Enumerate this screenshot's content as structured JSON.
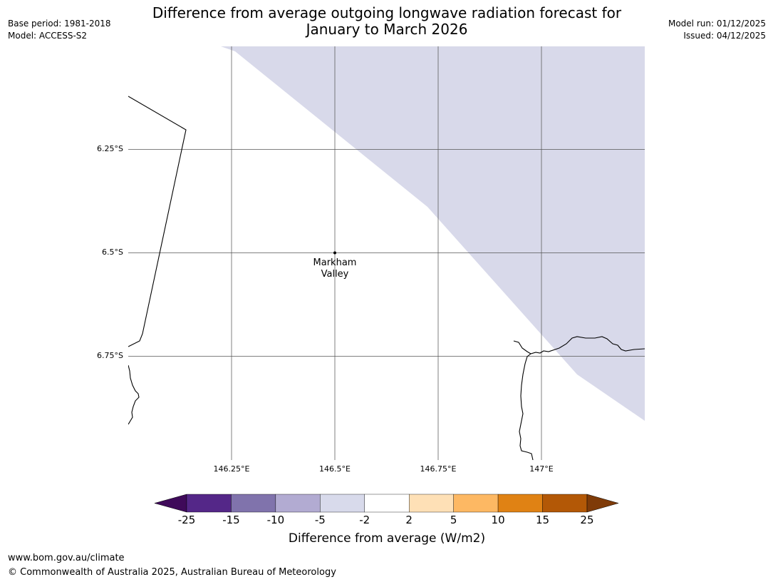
{
  "header": {
    "base_period": "Base period: 1981-2018",
    "model": "Model: ACCESS-S2",
    "title_line1": "Difference from average outgoing longwave radiation forecast for",
    "title_line2": "January to March 2026",
    "model_run": "Model run: 01/12/2025",
    "issued": "Issued: 04/12/2025"
  },
  "map": {
    "lat_ticks": [
      "6.25°S",
      "6.5°S",
      "6.75°S"
    ],
    "lon_ticks": [
      "146.25°E",
      "146.5°E",
      "146.75°E",
      "147°E"
    ],
    "place": {
      "name_line1": "Markham",
      "name_line2": "Valley",
      "lat": -6.5,
      "lon": 146.5
    },
    "shaded_category": "-5 to -2",
    "shade_color": "#d8d9ea",
    "extent": {
      "lon_min": 146.0,
      "lon_max": 147.25,
      "lat_min": -7.0,
      "lat_max": -6.0
    }
  },
  "colorbar": {
    "title": "Difference from average (W/m2)",
    "labels": [
      "-25",
      "-15",
      "-10",
      "-5",
      "-2",
      "2",
      "5",
      "10",
      "15",
      "25"
    ],
    "low_extend_color": "#3f0a5a",
    "high_extend_color": "#7f3b08",
    "colors": [
      "#542788",
      "#8073ac",
      "#b2abd2",
      "#d8daeb",
      "#ffffff",
      "#fee0b6",
      "#fdb863",
      "#e08214",
      "#b35806"
    ]
  },
  "footer": {
    "url": "www.bom.gov.au/climate",
    "copyright": "© Commonwealth of Australia 2025, Australian Bureau of Meteorology"
  }
}
